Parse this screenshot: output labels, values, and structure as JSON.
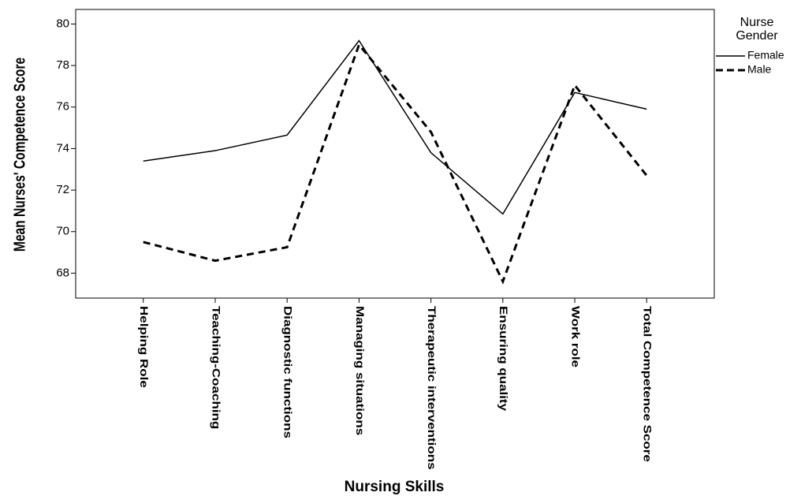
{
  "chart_data": {
    "type": "line",
    "x_label": "Nursing Skills",
    "y_label": "Mean Nurses' Competence Score",
    "categories": [
      "Helping Role",
      "Teaching-Coaching",
      "Diagnostic functions",
      "Managing situations",
      "Therapeutic interventions",
      "Ensuring quality",
      "Work role",
      "Total Competence Score"
    ],
    "series": [
      {
        "name": "Female",
        "color": "#000000",
        "dash": "solid",
        "values": [
          73.4,
          73.9,
          74.65,
          79.2,
          73.8,
          70.85,
          76.7,
          75.9
        ]
      },
      {
        "name": "Male",
        "color": "#000000",
        "dash": "dashed",
        "values": [
          69.5,
          68.6,
          69.25,
          79.0,
          74.8,
          67.6,
          77.05,
          72.7
        ]
      }
    ],
    "legend_title": "Nurse Gender",
    "legend": "right",
    "ylim": [
      66.8,
      80.7
    ],
    "yticks": [
      68,
      70,
      72,
      74,
      76,
      78,
      80
    ],
    "grid": false
  }
}
